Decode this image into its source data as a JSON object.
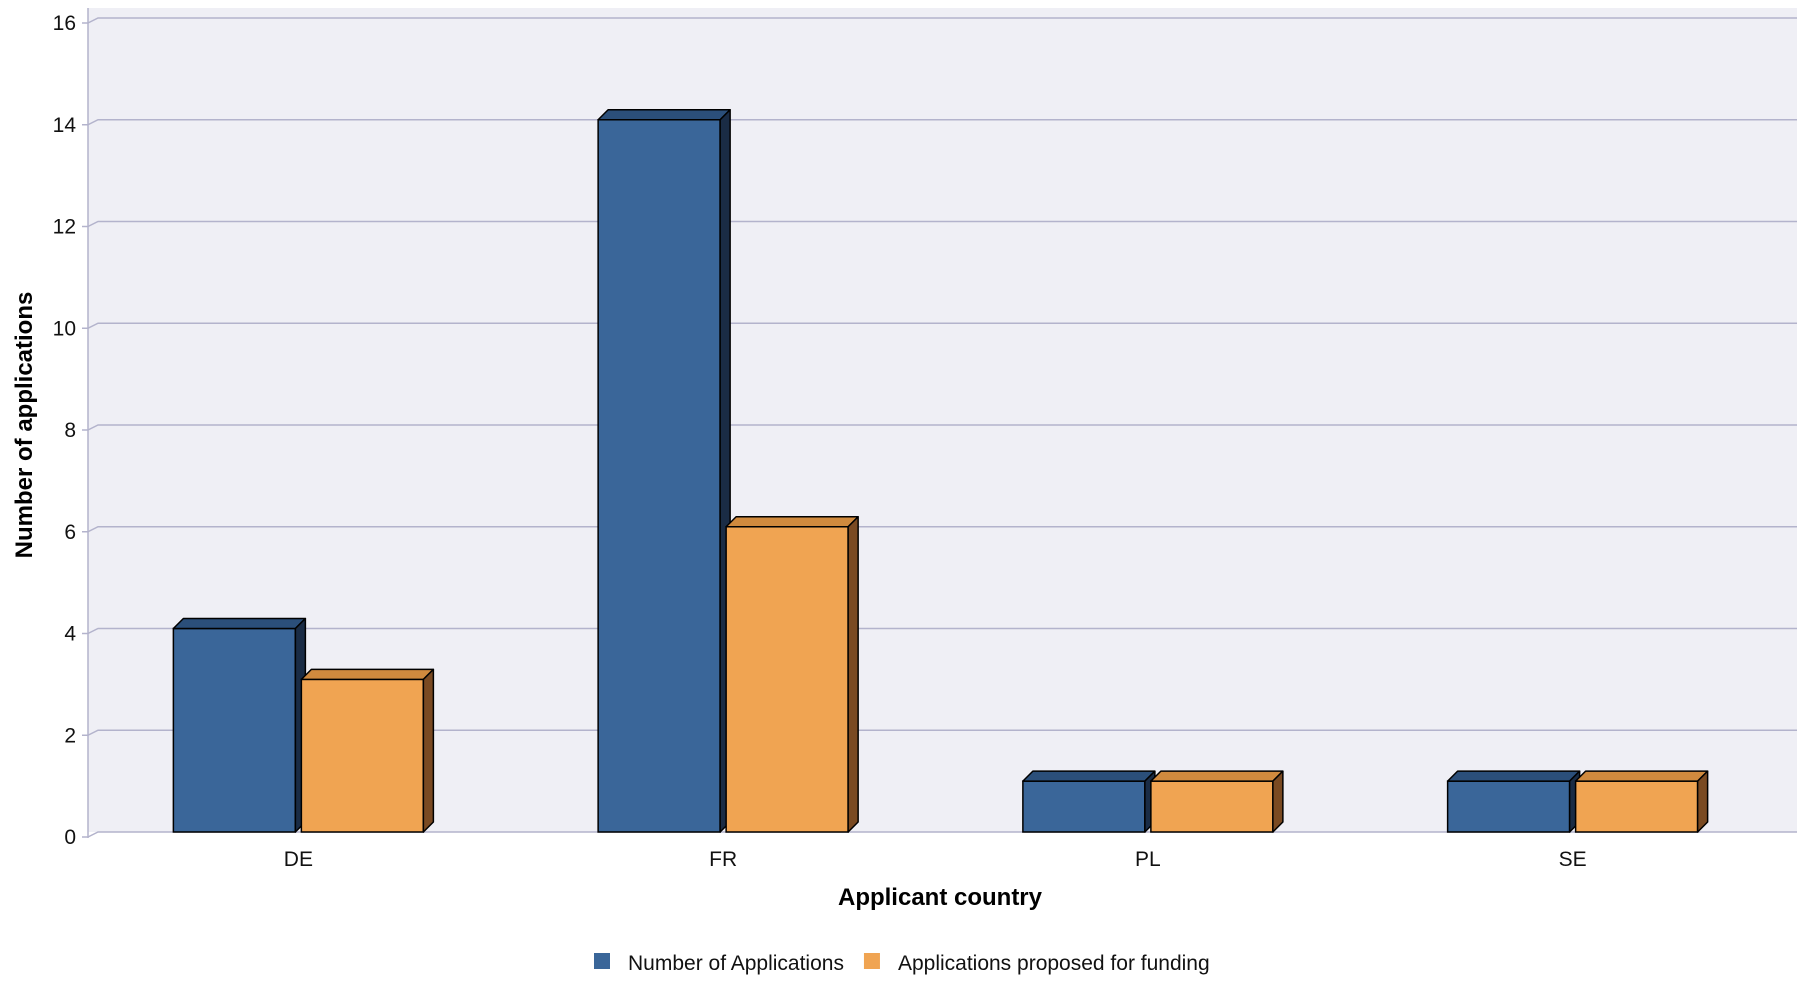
{
  "chart_data": {
    "type": "bar",
    "title": "",
    "xlabel": "Applicant country",
    "ylabel": "Number of applications",
    "categories": [
      "DE",
      "FR",
      "PL",
      "SE"
    ],
    "series": [
      {
        "name": "Number of Applications",
        "values": [
          4,
          14,
          1,
          1
        ],
        "color": "#3a6699",
        "side_color": "#1a2c45",
        "top_color": "#2b4f7a"
      },
      {
        "name": "Applications proposed for funding",
        "values": [
          3,
          6,
          1,
          1
        ],
        "color": "#f0a452",
        "side_color": "#7a4a22",
        "top_color": "#d08a3e"
      }
    ],
    "ylim": [
      0,
      16
    ],
    "yticks": [
      0,
      2,
      4,
      6,
      8,
      10,
      12,
      14,
      16
    ],
    "grid": true,
    "legend_position": "bottom-center",
    "plot_background": "#efeff5",
    "grid_color": "#b3b3cc"
  }
}
